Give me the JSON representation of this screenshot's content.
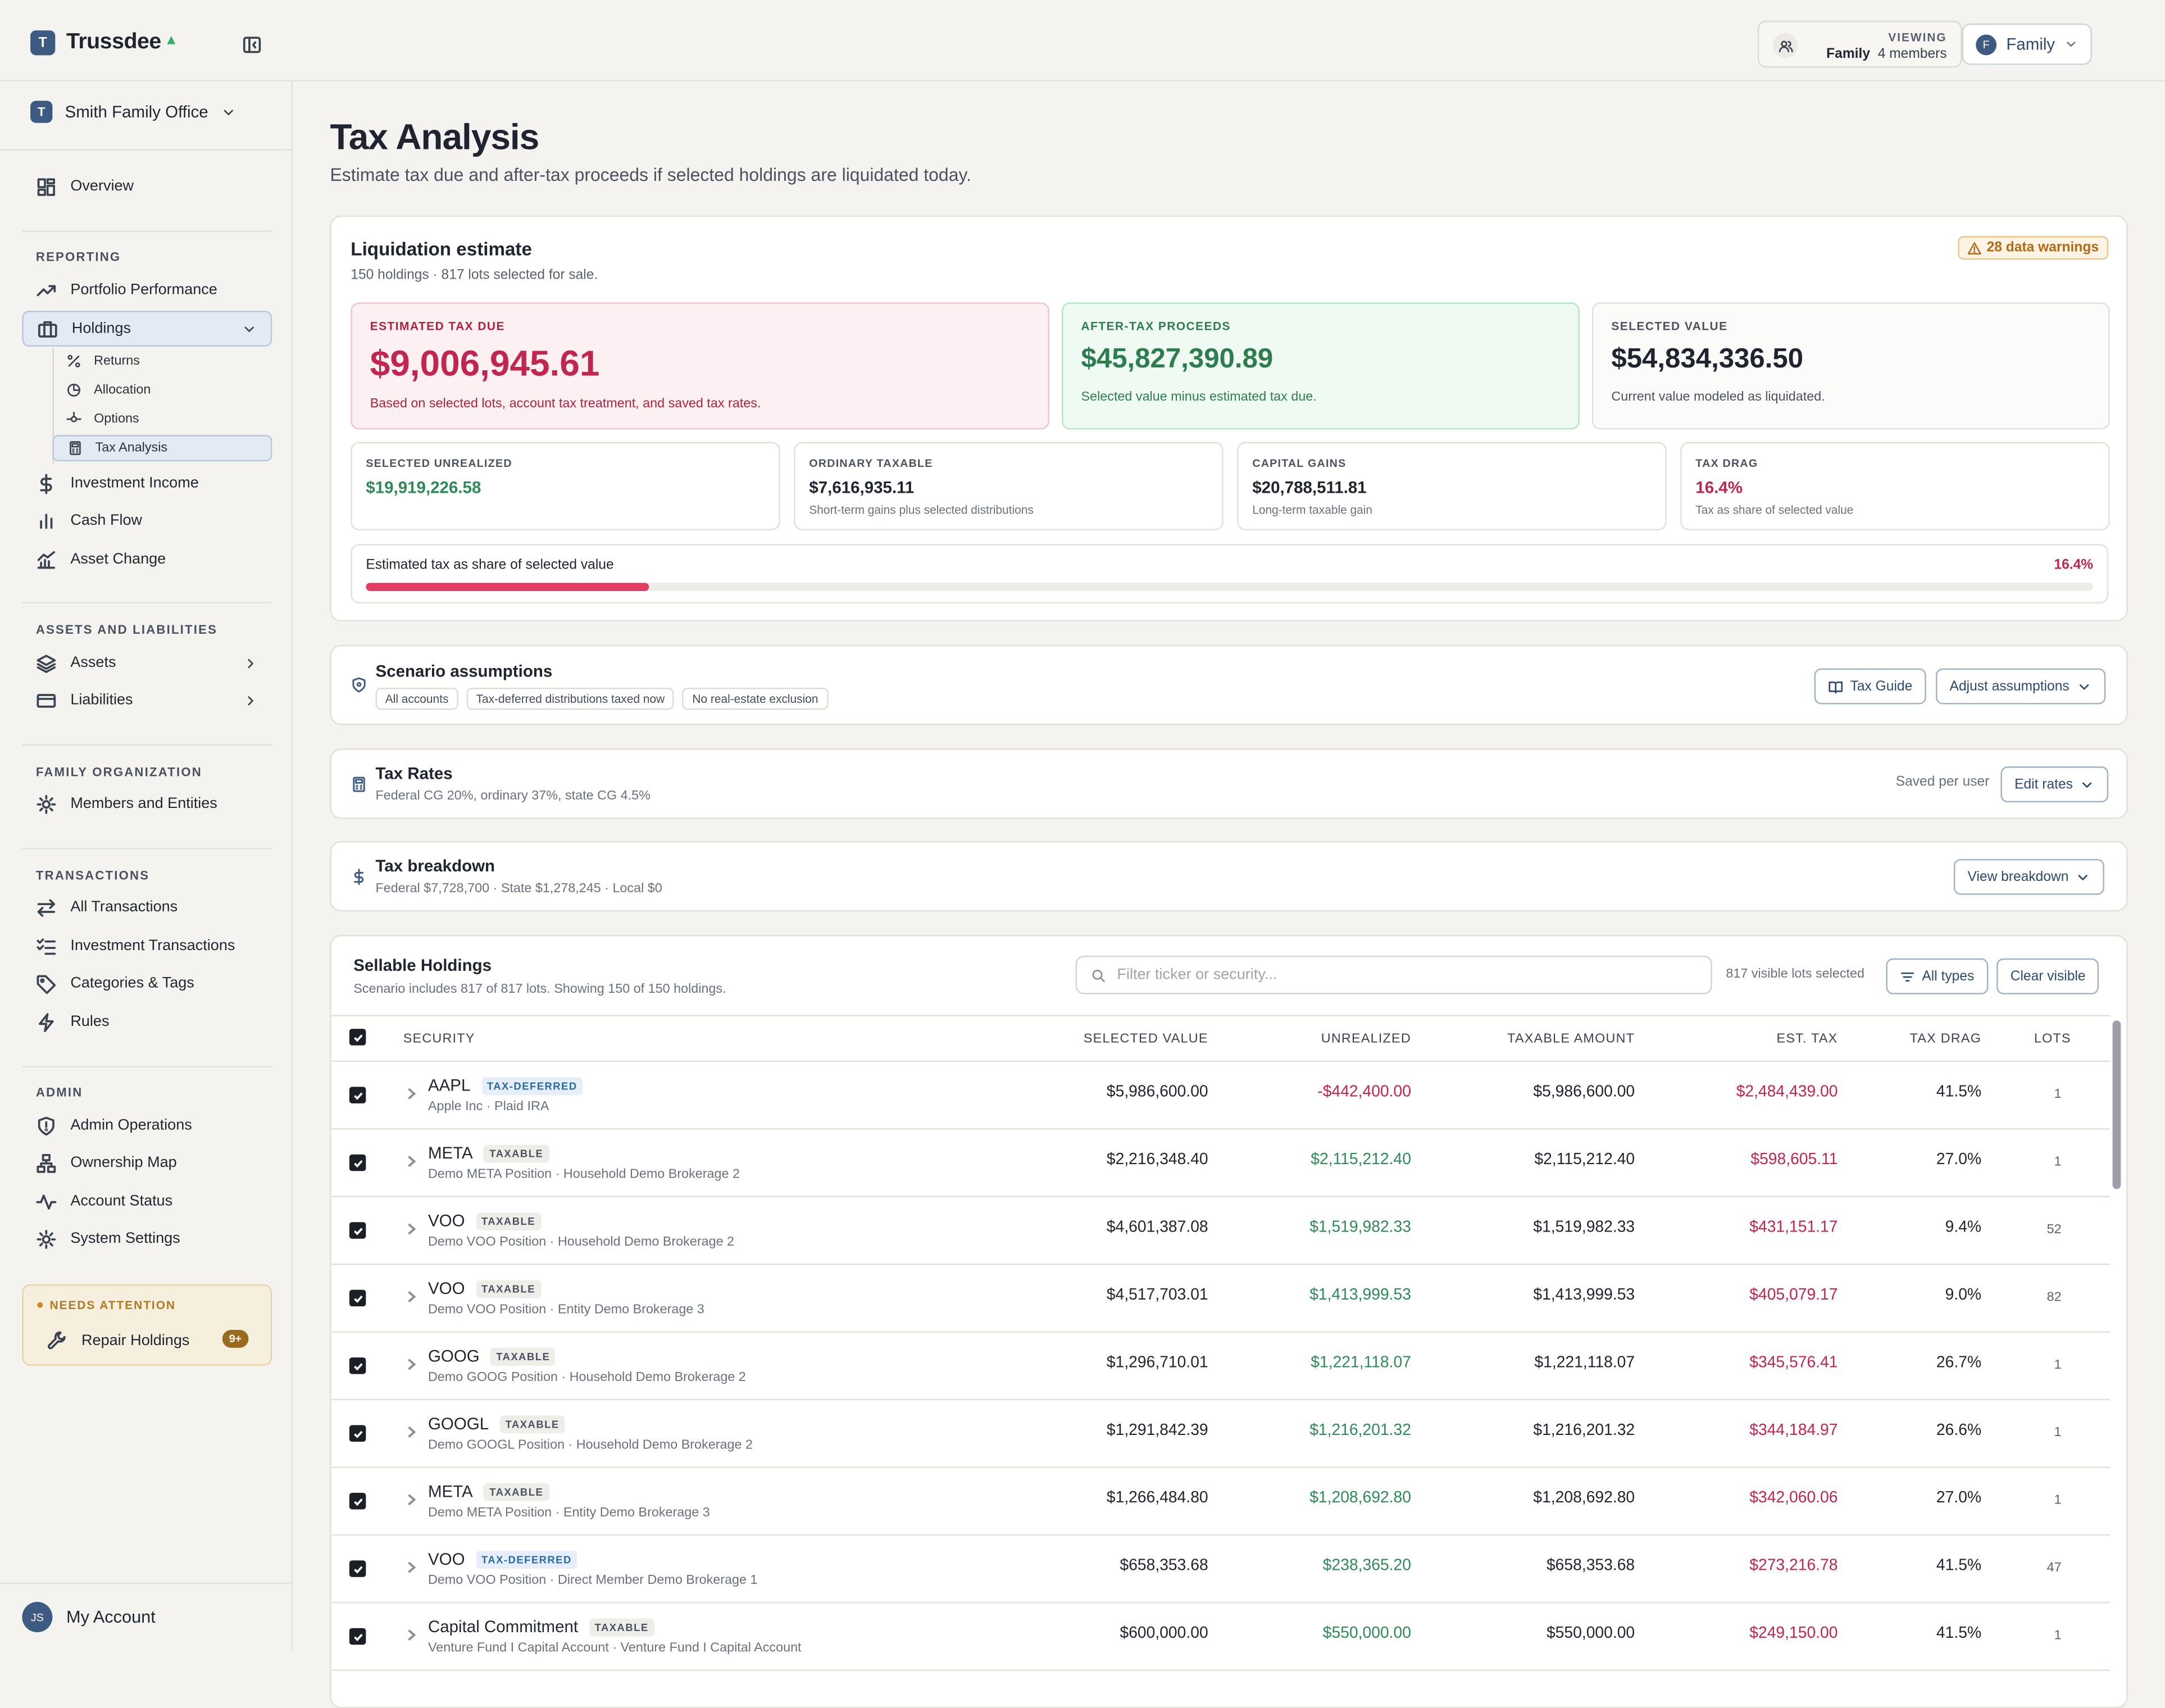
{
  "app": {
    "name": "Trussdee",
    "org": "Smith Family Office",
    "logo_letter": "T"
  },
  "sidebar": {
    "overview": "Overview",
    "reporting_label": "REPORTING",
    "reporting": [
      "Portfolio Performance",
      "Holdings"
    ],
    "holdings_sub": [
      "Returns",
      "Allocation",
      "Options",
      "Tax Analysis"
    ],
    "reporting_more": [
      "Investment Income",
      "Cash Flow",
      "Asset Change"
    ],
    "assets_label": "ASSETS AND LIABILITIES",
    "assets": [
      "Assets",
      "Liabilities"
    ],
    "family_label": "FAMILY ORGANIZATION",
    "family": [
      "Members and Entities"
    ],
    "transactions_label": "TRANSACTIONS",
    "transactions": [
      "All Transactions",
      "Investment Transactions",
      "Categories & Tags",
      "Rules"
    ],
    "admin_label": "ADMIN",
    "admin": [
      "Admin Operations",
      "Ownership Map",
      "Account Status",
      "System Settings"
    ],
    "attention_label": "NEEDS ATTENTION",
    "attention_item": "Repair Holdings",
    "attention_count": "9+",
    "account": "My Account",
    "account_initials": "JS"
  },
  "topbar": {
    "viewing_label": "VIEWING",
    "viewing_name": "Family",
    "viewing_members": "4 members",
    "family_select": "Family",
    "family_initial": "F"
  },
  "page": {
    "title": "Tax Analysis",
    "subtitle": "Estimate tax due and after-tax proceeds if selected holdings are liquidated today."
  },
  "liquidation": {
    "title": "Liquidation estimate",
    "subtitle": "150 holdings · 817 lots selected for sale.",
    "warnings": "28 data warnings",
    "tax_due_label": "ESTIMATED TAX DUE",
    "tax_due": "$9,006,945.61",
    "tax_due_note": "Based on selected lots, account tax treatment, and saved tax rates.",
    "after_tax_label": "AFTER-TAX PROCEEDS",
    "after_tax": "$45,827,390.89",
    "after_tax_note": "Selected value minus estimated tax due.",
    "selected_label": "SELECTED VALUE",
    "selected": "$54,834,336.50",
    "selected_note": "Current value modeled as liquidated.",
    "unrealized_label": "SELECTED UNREALIZED",
    "unrealized": "$19,919,226.58",
    "ordinary_label": "ORDINARY TAXABLE",
    "ordinary": "$7,616,935.11",
    "ordinary_note": "Short-term gains plus selected distributions",
    "capgains_label": "CAPITAL GAINS",
    "capgains": "$20,788,511.81",
    "capgains_note": "Long-term taxable gain",
    "drag_label": "TAX DRAG",
    "drag": "16.4%",
    "drag_note": "Tax as share of selected value",
    "share_label": "Estimated tax as share of selected value",
    "share_pct": "16.4%",
    "share_fraction": 0.164
  },
  "scenario": {
    "title": "Scenario assumptions",
    "chips": [
      "All accounts",
      "Tax-deferred distributions taxed now",
      "No real-estate exclusion"
    ],
    "guide_button": "Tax Guide",
    "adjust_button": "Adjust assumptions"
  },
  "rates": {
    "title": "Tax Rates",
    "subtitle": "Federal CG 20%, ordinary 37%, state CG 4.5%",
    "saved": "Saved per user",
    "edit_button": "Edit rates"
  },
  "breakdown": {
    "title": "Tax breakdown",
    "subtitle": "Federal $7,728,700 · State $1,278,245 · Local $0",
    "view_button": "View breakdown"
  },
  "holdings": {
    "title": "Sellable Holdings",
    "subtitle": "Scenario includes 817 of 817 lots. Showing 150 of 150 holdings.",
    "search_placeholder": "Filter ticker or security...",
    "visible_selected": "817 visible lots selected",
    "types_button": "All types",
    "clear_button": "Clear visible",
    "columns": [
      "SECURITY",
      "SELECTED VALUE",
      "UNREALIZED",
      "TAXABLE AMOUNT",
      "EST. TAX",
      "TAX DRAG",
      "LOTS"
    ],
    "rows": [
      {
        "ticker": "AAPL",
        "badge": "TAX-DEFERRED",
        "desc": "Apple Inc · Plaid IRA",
        "value": "$5,986,600.00",
        "unrealized": "-$442,400.00",
        "taxable": "$5,986,600.00",
        "tax": "$2,484,439.00",
        "drag": "41.5%",
        "lots": "1"
      },
      {
        "ticker": "META",
        "badge": "TAXABLE",
        "desc": "Demo META Position · Household Demo Brokerage 2",
        "value": "$2,216,348.40",
        "unrealized": "$2,115,212.40",
        "taxable": "$2,115,212.40",
        "tax": "$598,605.11",
        "drag": "27.0%",
        "lots": "1"
      },
      {
        "ticker": "VOO",
        "badge": "TAXABLE",
        "desc": "Demo VOO Position · Household Demo Brokerage 2",
        "value": "$4,601,387.08",
        "unrealized": "$1,519,982.33",
        "taxable": "$1,519,982.33",
        "tax": "$431,151.17",
        "drag": "9.4%",
        "lots": "52"
      },
      {
        "ticker": "VOO",
        "badge": "TAXABLE",
        "desc": "Demo VOO Position · Entity Demo Brokerage 3",
        "value": "$4,517,703.01",
        "unrealized": "$1,413,999.53",
        "taxable": "$1,413,999.53",
        "tax": "$405,079.17",
        "drag": "9.0%",
        "lots": "82"
      },
      {
        "ticker": "GOOG",
        "badge": "TAXABLE",
        "desc": "Demo GOOG Position · Household Demo Brokerage 2",
        "value": "$1,296,710.01",
        "unrealized": "$1,221,118.07",
        "taxable": "$1,221,118.07",
        "tax": "$345,576.41",
        "drag": "26.7%",
        "lots": "1"
      },
      {
        "ticker": "GOOGL",
        "badge": "TAXABLE",
        "desc": "Demo GOOGL Position · Household Demo Brokerage 2",
        "value": "$1,291,842.39",
        "unrealized": "$1,216,201.32",
        "taxable": "$1,216,201.32",
        "tax": "$344,184.97",
        "drag": "26.6%",
        "lots": "1"
      },
      {
        "ticker": "META",
        "badge": "TAXABLE",
        "desc": "Demo META Position · Entity Demo Brokerage 3",
        "value": "$1,266,484.80",
        "unrealized": "$1,208,692.80",
        "taxable": "$1,208,692.80",
        "tax": "$342,060.06",
        "drag": "27.0%",
        "lots": "1"
      },
      {
        "ticker": "VOO",
        "badge": "TAX-DEFERRED",
        "desc": "Demo VOO Position · Direct Member Demo Brokerage 1",
        "value": "$658,353.68",
        "unrealized": "$238,365.20",
        "taxable": "$658,353.68",
        "tax": "$273,216.78",
        "drag": "41.5%",
        "lots": "47"
      },
      {
        "ticker": "Capital Commitment",
        "badge": "TAXABLE",
        "desc": "Venture Fund I Capital Account · Venture Fund I Capital Account",
        "value": "$600,000.00",
        "unrealized": "$550,000.00",
        "taxable": "$550,000.00",
        "tax": "$249,150.00",
        "drag": "41.5%",
        "lots": "1"
      }
    ]
  }
}
